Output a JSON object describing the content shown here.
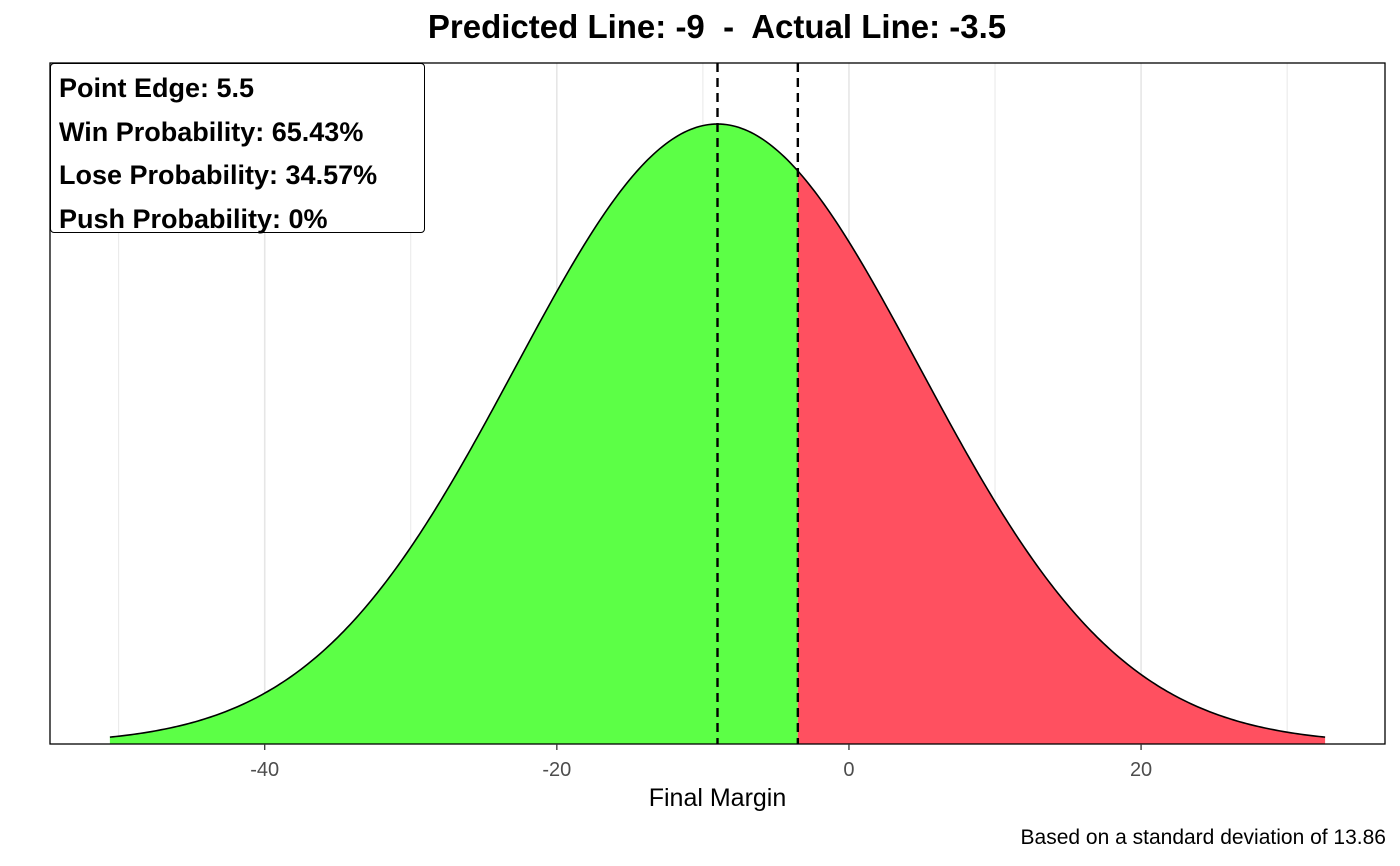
{
  "title": "Predicted Line: -9  -  Actual Line: -3.5",
  "caption": "Based on a standard deviation of 13.86",
  "info_box": {
    "point_edge": "Point Edge: 5.5",
    "win_probability": "Win Probability: 65.43%",
    "lose_probability": "Lose Probability: 34.57%",
    "push_probability": "Push Probability: 0%"
  },
  "colors": {
    "win_fill": "#5CFF46",
    "lose_fill": "#FF5060",
    "curve": "#000000",
    "grid": "#E6E6E6"
  },
  "chart_data": {
    "type": "area",
    "title": "Predicted Line: -9  -  Actual Line: -3.5",
    "xlabel": "Final Margin",
    "ylabel": "",
    "distribution": {
      "kind": "normal",
      "mean": -9,
      "sd": 13.86
    },
    "x_range": [
      -50.6,
      32.6
    ],
    "xlim": [
      -54.7,
      36.7
    ],
    "x_ticks": [
      -40,
      -20,
      0,
      20
    ],
    "x_tick_labels": [
      "-40",
      "-20",
      "0",
      "20"
    ],
    "y_ticks_shown": false,
    "grid": "vertical major and minor",
    "regions": [
      {
        "name": "win",
        "from": -50.6,
        "to": -3.5,
        "color": "#5CFF46"
      },
      {
        "name": "lose",
        "from": -3.5,
        "to": 32.6,
        "color": "#FF5060"
      }
    ],
    "reference_lines": [
      {
        "x": -9,
        "style": "dashed"
      },
      {
        "x": -3.5,
        "style": "dashed"
      }
    ],
    "caption": "Based on a standard deviation of 13.86"
  }
}
